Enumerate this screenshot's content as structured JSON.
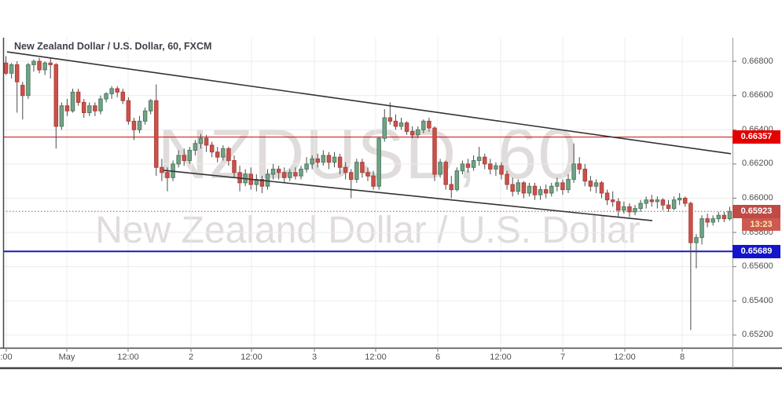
{
  "header": {
    "title": "New Zealand Dollar / U.S. Dollar, 60, FXCM"
  },
  "watermark": {
    "line1": "NZDUSD, 60",
    "line2": "New Zealand Dollar / U.S. Dollar"
  },
  "labels": {
    "resistance": "0.66357",
    "last_price": "0.65923",
    "countdown": "13:23",
    "support": "0.65689"
  },
  "colors": {
    "up_fill": "#73a287",
    "up_border": "#4d7d63",
    "down_fill": "#c9524b",
    "down_border": "#b03f39",
    "wick": "#4a4a4a",
    "grid": "#ececec",
    "frame": "#444444",
    "axis_separator": "#999999",
    "axis_text": "#4f4f4f",
    "trendline": "#333333",
    "resistance_line": "#d40000",
    "resistance_tag_bg": "#e50000",
    "last_price_line": "#a9564c",
    "last_price_tag_bg": "#c04a44",
    "countdown_tag_bg": "#cc5a52",
    "countdown_text": "#ffe9a8",
    "support_line": "#1b1bb3",
    "support_tag_bg": "#1414cc",
    "watermark": "#e0dcdb",
    "title_text": "#3e424a"
  },
  "chart_data": {
    "type": "candlestick",
    "title": "New Zealand Dollar / U.S. Dollar, 60, FXCM",
    "symbol": "NZDUSD",
    "interval": "60",
    "provider": "FXCM",
    "price_range": [
      0.65126,
      0.66938
    ],
    "grid": true,
    "y_ticks": [
      {
        "text": "0.66800",
        "price": 0.668
      },
      {
        "text": "0.66600",
        "price": 0.666
      },
      {
        "text": "0.66400",
        "price": 0.664
      },
      {
        "text": "0.66200",
        "price": 0.662
      },
      {
        "text": "0.66000",
        "price": 0.66
      },
      {
        "text": "0.65800",
        "price": 0.658
      },
      {
        "text": "0.65600",
        "price": 0.656
      },
      {
        "text": "0.65400",
        "price": 0.654
      },
      {
        "text": "0.65200",
        "price": 0.652
      }
    ],
    "x_ticks": [
      {
        "text": ":00",
        "x": 8
      },
      {
        "text": "May",
        "x": 85
      },
      {
        "text": "12:00",
        "x": 163
      },
      {
        "text": "2",
        "x": 243
      },
      {
        "text": "12:00",
        "x": 320
      },
      {
        "text": "3",
        "x": 400
      },
      {
        "text": "12:00",
        "x": 478
      },
      {
        "text": "6",
        "x": 557
      },
      {
        "text": "12:00",
        "x": 637
      },
      {
        "text": "7",
        "x": 716
      },
      {
        "text": "12:00",
        "x": 795
      },
      {
        "text": "8",
        "x": 868
      }
    ],
    "levels": [
      {
        "name": "resistance",
        "price": 0.66357,
        "style": "solid",
        "width": 1,
        "color_key": "resistance_line"
      },
      {
        "name": "last-price",
        "price": 0.65923,
        "style": "dotted",
        "width": 1,
        "color_key": "last_price_line"
      },
      {
        "name": "support",
        "price": 0.65689,
        "style": "solid",
        "width": 2,
        "color_key": "support_line"
      }
    ],
    "countdown": "13:23",
    "trendlines": [
      {
        "name": "upper-channel",
        "x1": 9,
        "price1": 0.66855,
        "x2": 930,
        "price2": 0.6626
      },
      {
        "name": "lower-channel",
        "x1": 208,
        "price1": 0.66163,
        "x2": 830,
        "price2": 0.65869
      }
    ],
    "candles": [
      [
        0.6679,
        0.6683,
        0.6672,
        0.6673
      ],
      [
        0.6673,
        0.6679,
        0.667,
        0.6678
      ],
      [
        0.6678,
        0.668,
        0.665,
        0.6668
      ],
      [
        0.6666,
        0.6668,
        0.6646,
        0.666
      ],
      [
        0.666,
        0.6679,
        0.6658,
        0.6678
      ],
      [
        0.6678,
        0.6681,
        0.6674,
        0.668
      ],
      [
        0.668,
        0.6682,
        0.6673,
        0.6675
      ],
      [
        0.6675,
        0.668,
        0.6672,
        0.6679
      ],
      [
        0.6679,
        0.6682,
        0.667,
        0.6678
      ],
      [
        0.6678,
        0.6679,
        0.6629,
        0.6642
      ],
      [
        0.6642,
        0.6656,
        0.664,
        0.6654
      ],
      [
        0.6654,
        0.6658,
        0.6648,
        0.6651
      ],
      [
        0.6651,
        0.6664,
        0.665,
        0.6662
      ],
      [
        0.6662,
        0.6664,
        0.6654,
        0.6656
      ],
      [
        0.6656,
        0.6658,
        0.6647,
        0.665
      ],
      [
        0.665,
        0.6656,
        0.6648,
        0.6654
      ],
      [
        0.6654,
        0.6656,
        0.6648,
        0.6651
      ],
      [
        0.6651,
        0.666,
        0.6649,
        0.6658
      ],
      [
        0.6658,
        0.6662,
        0.6656,
        0.6661
      ],
      [
        0.6661,
        0.66655,
        0.6658,
        0.6664
      ],
      [
        0.6664,
        0.66655,
        0.6659,
        0.6662
      ],
      [
        0.6662,
        0.6664,
        0.6655,
        0.6657
      ],
      [
        0.6657,
        0.6659,
        0.6643,
        0.6645
      ],
      [
        0.6645,
        0.6647,
        0.6634,
        0.664
      ],
      [
        0.664,
        0.6648,
        0.6638,
        0.6645
      ],
      [
        0.6645,
        0.6653,
        0.6643,
        0.6651
      ],
      [
        0.6651,
        0.6658,
        0.6649,
        0.6657
      ],
      [
        0.6657,
        0.66665,
        0.6613,
        0.6618
      ],
      [
        0.6618,
        0.6623,
        0.661,
        0.6615
      ],
      [
        0.6615,
        0.6618,
        0.6604,
        0.6612
      ],
      [
        0.6612,
        0.6622,
        0.661,
        0.662
      ],
      [
        0.662,
        0.6628,
        0.6618,
        0.6625
      ],
      [
        0.6625,
        0.6629,
        0.6619,
        0.6622
      ],
      [
        0.6622,
        0.663,
        0.662,
        0.6628
      ],
      [
        0.6628,
        0.6634,
        0.6625,
        0.6632
      ],
      [
        0.6632,
        0.66375,
        0.6629,
        0.6635
      ],
      [
        0.6635,
        0.6637,
        0.6627,
        0.6631
      ],
      [
        0.6631,
        0.6633,
        0.6624,
        0.6627
      ],
      [
        0.6627,
        0.663,
        0.6621,
        0.6624
      ],
      [
        0.6624,
        0.6631,
        0.6622,
        0.6629
      ],
      [
        0.6629,
        0.663,
        0.6619,
        0.6622
      ],
      [
        0.6622,
        0.6625,
        0.6612,
        0.6615
      ],
      [
        0.6615,
        0.6619,
        0.6604,
        0.6609
      ],
      [
        0.6609,
        0.6617,
        0.6607,
        0.6614
      ],
      [
        0.6614,
        0.6618,
        0.6605,
        0.6608
      ],
      [
        0.6608,
        0.6614,
        0.6604,
        0.6611
      ],
      [
        0.6611,
        0.6613,
        0.6603,
        0.6607
      ],
      [
        0.6607,
        0.6617,
        0.6605,
        0.6614
      ],
      [
        0.6614,
        0.662,
        0.6611,
        0.6617
      ],
      [
        0.6617,
        0.6619,
        0.6611,
        0.6615
      ],
      [
        0.6615,
        0.6618,
        0.6609,
        0.6612
      ],
      [
        0.6612,
        0.6617,
        0.661,
        0.6615
      ],
      [
        0.6615,
        0.6618,
        0.6611,
        0.6613
      ],
      [
        0.6613,
        0.6619,
        0.6611,
        0.6617
      ],
      [
        0.6617,
        0.6624,
        0.6615,
        0.662
      ],
      [
        0.662,
        0.6625,
        0.6617,
        0.6623
      ],
      [
        0.6623,
        0.6626,
        0.6618,
        0.6621
      ],
      [
        0.6621,
        0.6628,
        0.6619,
        0.6625
      ],
      [
        0.6625,
        0.6627,
        0.6617,
        0.6621
      ],
      [
        0.6621,
        0.6627,
        0.6618,
        0.6624
      ],
      [
        0.6624,
        0.6626,
        0.6614,
        0.6618
      ],
      [
        0.6618,
        0.6621,
        0.6611,
        0.6615
      ],
      [
        0.6615,
        0.6617,
        0.66,
        0.6611
      ],
      [
        0.6611,
        0.6623,
        0.6609,
        0.6621
      ],
      [
        0.6621,
        0.6623,
        0.6612,
        0.6615
      ],
      [
        0.6615,
        0.6618,
        0.661,
        0.6613
      ],
      [
        0.6613,
        0.6616,
        0.6605,
        0.6607
      ],
      [
        0.6607,
        0.6636,
        0.6605,
        0.6635
      ],
      [
        0.6635,
        0.6652,
        0.6633,
        0.6647
      ],
      [
        0.6647,
        0.6656,
        0.6643,
        0.6645
      ],
      [
        0.6645,
        0.6649,
        0.664,
        0.6642
      ],
      [
        0.6642,
        0.6647,
        0.664,
        0.6644
      ],
      [
        0.6644,
        0.6645,
        0.6637,
        0.6639
      ],
      [
        0.6639,
        0.6642,
        0.6635,
        0.6637
      ],
      [
        0.6637,
        0.6642,
        0.6635,
        0.664
      ],
      [
        0.664,
        0.6646,
        0.6638,
        0.6645
      ],
      [
        0.6645,
        0.6647,
        0.6639,
        0.6641
      ],
      [
        0.6641,
        0.6642,
        0.661,
        0.6614
      ],
      [
        0.6614,
        0.6623,
        0.6612,
        0.6621
      ],
      [
        0.6621,
        0.6622,
        0.6605,
        0.6608
      ],
      [
        0.6608,
        0.6613,
        0.66,
        0.6605
      ],
      [
        0.6605,
        0.6618,
        0.6604,
        0.6616
      ],
      [
        0.6616,
        0.6622,
        0.6614,
        0.662
      ],
      [
        0.662,
        0.6623,
        0.6615,
        0.6618
      ],
      [
        0.6618,
        0.6625,
        0.6616,
        0.6622
      ],
      [
        0.6622,
        0.663,
        0.6619,
        0.6624
      ],
      [
        0.6624,
        0.6626,
        0.6617,
        0.662
      ],
      [
        0.662,
        0.6623,
        0.6614,
        0.6617
      ],
      [
        0.6617,
        0.6621,
        0.6613,
        0.6619
      ],
      [
        0.6619,
        0.6621,
        0.6611,
        0.6614
      ],
      [
        0.6614,
        0.6616,
        0.6605,
        0.6608
      ],
      [
        0.6608,
        0.6612,
        0.6601,
        0.6604
      ],
      [
        0.6604,
        0.6611,
        0.6602,
        0.6609
      ],
      [
        0.6609,
        0.661,
        0.66,
        0.6603
      ],
      [
        0.6603,
        0.6609,
        0.6601,
        0.6607
      ],
      [
        0.6607,
        0.6609,
        0.6599,
        0.6602
      ],
      [
        0.6602,
        0.6607,
        0.6599,
        0.6605
      ],
      [
        0.6605,
        0.6608,
        0.66,
        0.6603
      ],
      [
        0.6603,
        0.6609,
        0.6601,
        0.6607
      ],
      [
        0.6607,
        0.6612,
        0.6604,
        0.6609
      ],
      [
        0.6609,
        0.6611,
        0.6602,
        0.6605
      ],
      [
        0.6605,
        0.6614,
        0.6603,
        0.6611
      ],
      [
        0.6611,
        0.6632,
        0.6609,
        0.662
      ],
      [
        0.662,
        0.6624,
        0.6614,
        0.6617
      ],
      [
        0.6617,
        0.662,
        0.6607,
        0.661
      ],
      [
        0.661,
        0.6613,
        0.6604,
        0.6607
      ],
      [
        0.6607,
        0.6611,
        0.6603,
        0.6609
      ],
      [
        0.6609,
        0.661,
        0.66,
        0.6603
      ],
      [
        0.6603,
        0.6605,
        0.6596,
        0.6599
      ],
      [
        0.6599,
        0.6604,
        0.6595,
        0.6598
      ],
      [
        0.6598,
        0.66,
        0.6589,
        0.6593
      ],
      [
        0.6593,
        0.6598,
        0.6591,
        0.6595
      ],
      [
        0.6595,
        0.6597,
        0.6589,
        0.6592
      ],
      [
        0.6592,
        0.6596,
        0.659,
        0.6594
      ],
      [
        0.6594,
        0.6599,
        0.6592,
        0.6597
      ],
      [
        0.6597,
        0.6601,
        0.6594,
        0.6599
      ],
      [
        0.6599,
        0.6602,
        0.6595,
        0.6598
      ],
      [
        0.6598,
        0.6601,
        0.6594,
        0.6599
      ],
      [
        0.6599,
        0.66,
        0.6593,
        0.6596
      ],
      [
        0.6596,
        0.6599,
        0.6592,
        0.6594
      ],
      [
        0.6594,
        0.6601,
        0.6593,
        0.6599
      ],
      [
        0.6599,
        0.6603,
        0.6596,
        0.66
      ],
      [
        0.66,
        0.6601,
        0.6595,
        0.6597
      ],
      [
        0.6597,
        0.6598,
        0.6523,
        0.6574
      ],
      [
        0.6574,
        0.6579,
        0.6559,
        0.6577
      ],
      [
        0.6577,
        0.659,
        0.6573,
        0.6588
      ],
      [
        0.6588,
        0.6591,
        0.6583,
        0.6586
      ],
      [
        0.6586,
        0.659,
        0.6584,
        0.6588
      ],
      [
        0.6588,
        0.6592,
        0.6586,
        0.659
      ],
      [
        0.659,
        0.6592,
        0.6586,
        0.6588
      ],
      [
        0.6588,
        0.6595,
        0.6587,
        0.65923
      ]
    ]
  }
}
